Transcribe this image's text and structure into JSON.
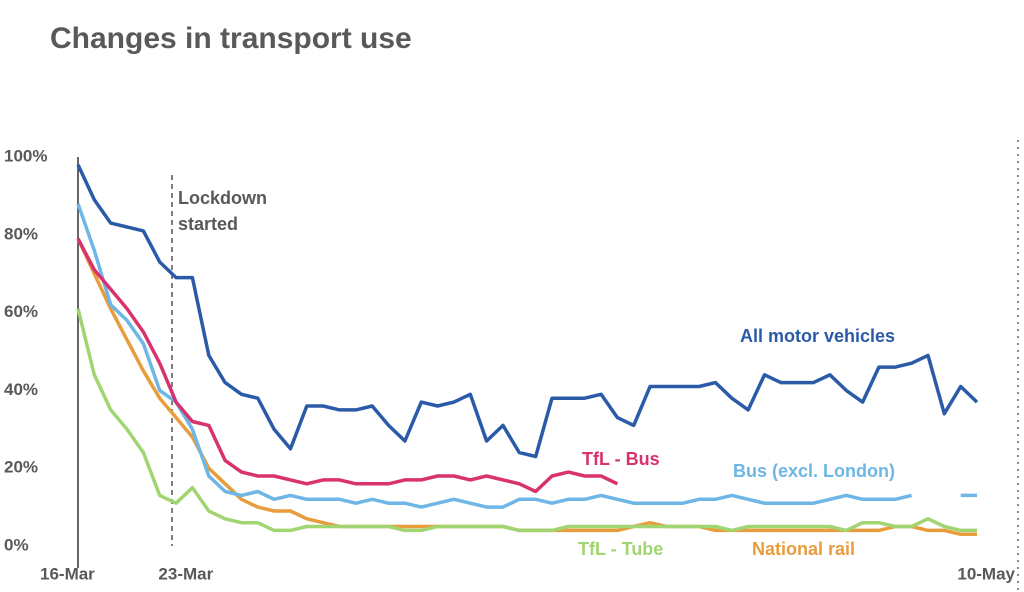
{
  "chart_data": {
    "type": "line",
    "title": "Changes in transport use",
    "annotation": [
      "Lockdown",
      "started"
    ],
    "categories": [
      "16-Mar",
      null,
      null,
      null,
      null,
      null,
      null,
      "23-Mar",
      null,
      null,
      null,
      null,
      null,
      null,
      null,
      null,
      null,
      null,
      null,
      null,
      null,
      null,
      null,
      null,
      null,
      null,
      null,
      null,
      null,
      null,
      null,
      null,
      null,
      null,
      null,
      null,
      null,
      null,
      null,
      null,
      null,
      null,
      null,
      null,
      null,
      null,
      null,
      null,
      null,
      null,
      null,
      null,
      null,
      null,
      null,
      "10-May"
    ],
    "ylim": [
      0,
      100
    ],
    "yticks": [
      {
        "value": 0,
        "label": "0%"
      },
      {
        "value": 20,
        "label": "20%"
      },
      {
        "value": 40,
        "label": "40%"
      },
      {
        "value": 60,
        "label": "60%"
      },
      {
        "value": 80,
        "label": "80%"
      },
      {
        "value": 100,
        "label": "100%"
      }
    ],
    "series": [
      {
        "name": "All motor vehicles",
        "color": "#2b5ba8",
        "values": [
          98,
          89,
          83,
          82,
          81,
          73,
          69,
          69,
          49,
          42,
          39,
          38,
          30,
          25,
          36,
          36,
          35,
          35,
          36,
          31,
          27,
          37,
          36,
          37,
          39,
          27,
          31,
          24,
          23,
          38,
          38,
          38,
          39,
          33,
          31,
          41,
          41,
          41,
          41,
          42,
          38,
          35,
          44,
          42,
          42,
          42,
          44,
          40,
          37,
          46,
          46,
          47,
          49,
          34,
          41,
          37
        ]
      },
      {
        "name": "TfL - Bus",
        "color": "#d9336f",
        "values": [
          79,
          71,
          66,
          61,
          55,
          47,
          37,
          32,
          31,
          22,
          19,
          18,
          18,
          17,
          16,
          17,
          17,
          16,
          16,
          16,
          17,
          17,
          18,
          18,
          17,
          18,
          17,
          16,
          14,
          18,
          19,
          18,
          18,
          16,
          null,
          null,
          null,
          null,
          null,
          null,
          null,
          null,
          null,
          null,
          null,
          null,
          null,
          null,
          null,
          null,
          null,
          null,
          null,
          null,
          null,
          null
        ]
      },
      {
        "name": "Bus (excl. London)",
        "color": "#6db6e6",
        "values": [
          88,
          76,
          62,
          58,
          52,
          40,
          37,
          30,
          18,
          14,
          13,
          14,
          12,
          13,
          12,
          12,
          12,
          11,
          12,
          11,
          11,
          10,
          11,
          12,
          11,
          10,
          10,
          12,
          12,
          11,
          12,
          12,
          13,
          12,
          11,
          11,
          11,
          11,
          12,
          12,
          13,
          12,
          11,
          11,
          11,
          11,
          12,
          13,
          12,
          12,
          12,
          13,
          null,
          null,
          13,
          13
        ]
      },
      {
        "name": "TfL - Tube",
        "color": "#a1d572",
        "values": [
          61,
          44,
          35,
          30,
          24,
          13,
          11,
          15,
          9,
          7,
          6,
          6,
          4,
          4,
          5,
          5,
          5,
          5,
          5,
          5,
          4,
          4,
          5,
          5,
          5,
          5,
          5,
          4,
          4,
          4,
          5,
          5,
          5,
          5,
          5,
          5,
          5,
          5,
          5,
          5,
          4,
          5,
          5,
          5,
          5,
          5,
          5,
          4,
          6,
          6,
          5,
          5,
          7,
          5,
          4,
          4
        ]
      },
      {
        "name": "National rail",
        "color": "#e89c3c",
        "values": [
          79,
          70,
          61,
          53,
          45,
          38,
          33,
          28,
          20,
          16,
          12,
          10,
          9,
          9,
          7,
          6,
          5,
          5,
          5,
          5,
          5,
          5,
          5,
          5,
          5,
          5,
          5,
          4,
          4,
          4,
          4,
          4,
          4,
          4,
          5,
          6,
          5,
          5,
          5,
          4,
          4,
          4,
          4,
          4,
          4,
          4,
          4,
          4,
          4,
          4,
          5,
          5,
          4,
          4,
          3,
          3
        ]
      }
    ]
  }
}
